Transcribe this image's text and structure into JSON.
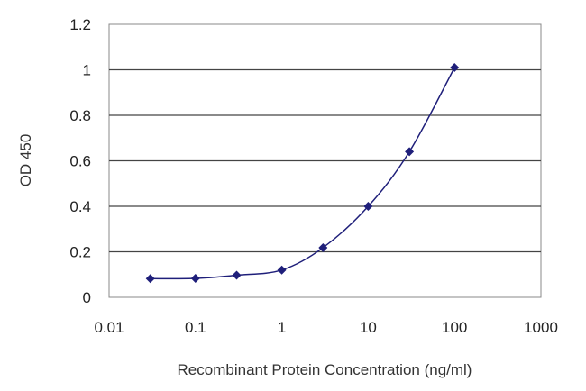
{
  "chart_data": {
    "type": "scatter",
    "xlabel": "Recombinant Protein Concentration (ng/ml)",
    "ylabel": "OD 450",
    "x_scale": "log",
    "xlim": [
      0.01,
      1000
    ],
    "ylim": [
      0,
      1.2
    ],
    "x_ticks": [
      "0.01",
      "0.1",
      "1",
      "10",
      "100",
      "1000"
    ],
    "x_tick_values": [
      0.01,
      0.1,
      1,
      10,
      100,
      1000
    ],
    "y_ticks": [
      "0",
      "0.2",
      "0.4",
      "0.6",
      "0.8",
      "1",
      "1.2"
    ],
    "y_tick_values": [
      0,
      0.2,
      0.4,
      0.6,
      0.8,
      1,
      1.2
    ],
    "grid": "horizontal",
    "series": [
      {
        "x": [
          0.03,
          0.1,
          0.3,
          1,
          3,
          10,
          30,
          100
        ],
        "y": [
          0.082,
          0.083,
          0.097,
          0.12,
          0.218,
          0.4,
          0.64,
          1.01
        ]
      }
    ],
    "colors": {
      "series": "#1f1f7a",
      "grid": "#444444"
    }
  }
}
